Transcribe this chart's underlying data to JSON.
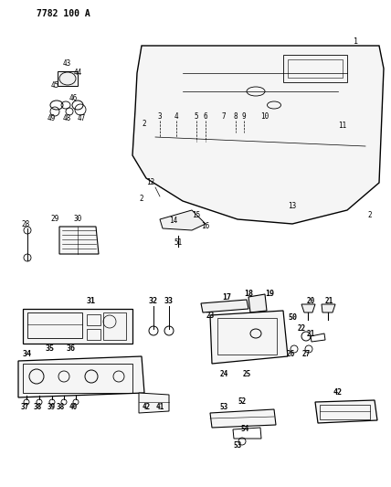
{
  "title_code": "7782 100 A",
  "bg_color": "#ffffff",
  "line_color": "#000000",
  "label_color": "#000000",
  "fig_width": 4.28,
  "fig_height": 5.33,
  "dpi": 100
}
